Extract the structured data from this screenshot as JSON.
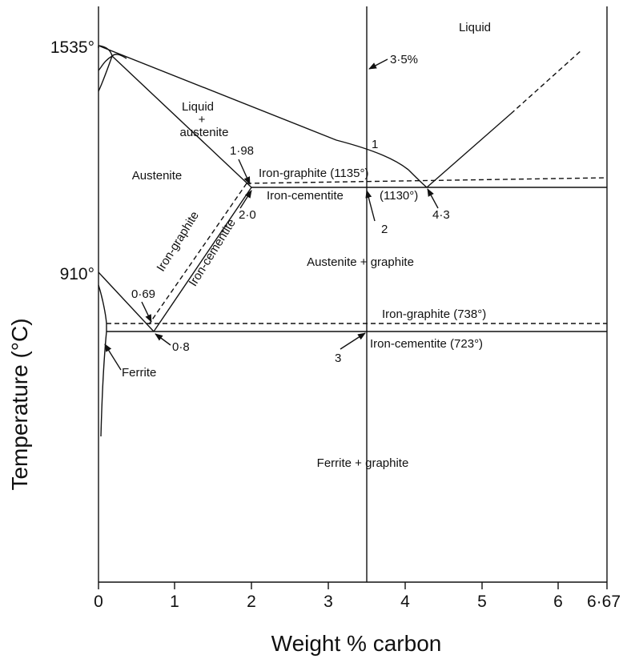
{
  "axes": {
    "x_title": "Weight % carbon",
    "y_title": "Temperature (°C)",
    "x_ticks": [
      "0",
      "1",
      "2",
      "3",
      "4",
      "5",
      "6",
      "6·67"
    ],
    "y_ticks": [
      "1535°",
      "910°"
    ]
  },
  "regions": {
    "liquid": "Liquid",
    "liquid_austenite_1": "Liquid",
    "liquid_austenite_plus": "+",
    "liquid_austenite_2": "austenite",
    "austenite": "Austenite",
    "austenite_graphite": "Austenite + graphite",
    "ferrite_graphite": "Ferrite + graphite",
    "ferrite": "Ferrite"
  },
  "lines": {
    "iron_graphite_1135": "Iron-graphite (1135°)",
    "iron_cementite_1130_a": "Iron-cementite",
    "iron_cementite_1130_b": "(1130°)",
    "iron_graphite_738": "Iron-graphite (738°)",
    "iron_cementite_723": "Iron-cementite (723°)",
    "iron_graphite_diag": "Iron-graphite",
    "iron_cementite_diag": "Iron-cementite"
  },
  "points": {
    "c_3_5": "3·5%",
    "p1": "1",
    "p2": "2",
    "p3": "3",
    "c_1_98": "1·98",
    "c_2_0": "2·0",
    "c_4_3": "4·3",
    "c_0_69": "0·69",
    "c_0_8": "0·8"
  }
}
